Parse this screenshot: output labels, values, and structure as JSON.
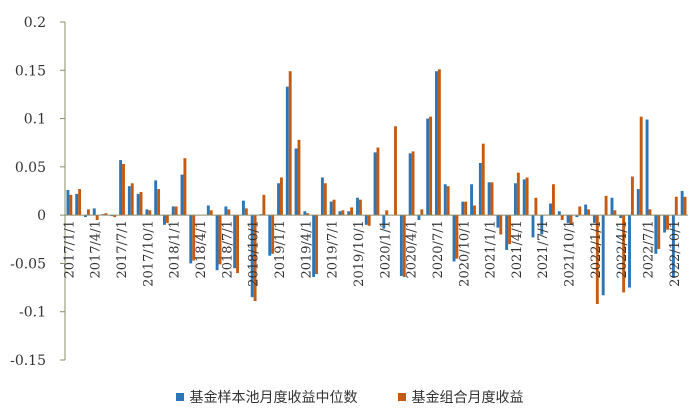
{
  "chart_data": {
    "type": "bar",
    "categories": [
      "2017/1/1",
      "2017/2/1",
      "2017/3/1",
      "2017/4/1",
      "2017/5/1",
      "2017/6/1",
      "2017/7/1",
      "2017/8/1",
      "2017/9/1",
      "2017/10/1",
      "2017/11/1",
      "2017/12/1",
      "2018/1/1",
      "2018/2/1",
      "2018/3/1",
      "2018/4/1",
      "2018/5/1",
      "2018/6/1",
      "2018/7/1",
      "2018/8/1",
      "2018/9/1",
      "2018/10/1",
      "2018/11/1",
      "2018/12/1",
      "2019/1/1",
      "2019/2/1",
      "2019/3/1",
      "2019/4/1",
      "2019/5/1",
      "2019/6/1",
      "2019/7/1",
      "2019/8/1",
      "2019/9/1",
      "2019/10/1",
      "2019/11/1",
      "2019/12/1",
      "2020/1/1",
      "2020/2/1",
      "2020/3/1",
      "2020/4/1",
      "2020/5/1",
      "2020/6/1",
      "2020/7/1",
      "2020/8/1",
      "2020/9/1",
      "2020/10/1",
      "2020/11/1",
      "2020/12/1",
      "2021/1/1",
      "2021/2/1",
      "2021/3/1",
      "2021/4/1",
      "2021/5/1",
      "2021/6/1",
      "2021/7/1",
      "2021/8/1",
      "2021/9/1",
      "2021/10/1",
      "2021/11/1",
      "2021/12/1",
      "2022/1/1",
      "2022/2/1",
      "2022/3/1",
      "2022/4/1",
      "2022/5/1",
      "2022/6/1",
      "2022/7/1",
      "2022/8/1",
      "2022/9/1",
      "2022/10/1",
      "2022/11/1"
    ],
    "tick_labels": [
      "2017/1/1",
      "2017/4/1",
      "2017/7/1",
      "2017/10/1",
      "2018/1/1",
      "2018/4/1",
      "2018/7/1",
      "2018/10/1",
      "2019/1/1",
      "2019/4/1",
      "2019/7/1",
      "2019/10/1",
      "2020/1/1",
      "2020/4/1",
      "2020/7/1",
      "2020/10/1",
      "2021/1/1",
      "2021/4/1",
      "2021/7/1",
      "2021/10/1",
      "2022/1/1",
      "2022/4/1",
      "2022/7/1",
      "2022/10/1"
    ],
    "series": [
      {
        "name": "基金样本池月度收益中位数",
        "color": "#2E75B6",
        "values": [
          0.026,
          0.022,
          -0.002,
          0.007,
          0.001,
          -0.001,
          0.057,
          0.03,
          0.022,
          0.006,
          0.036,
          -0.01,
          0.009,
          0.042,
          -0.05,
          0.0,
          0.01,
          -0.057,
          0.009,
          -0.055,
          0.015,
          -0.085,
          0.001,
          -0.042,
          0.033,
          0.133,
          0.069,
          0.004,
          -0.064,
          0.039,
          0.014,
          0.004,
          0.004,
          0.018,
          -0.01,
          0.065,
          -0.014,
          0.0,
          -0.063,
          0.064,
          -0.005,
          0.1,
          0.149,
          0.032,
          -0.048,
          0.014,
          0.032,
          0.054,
          0.034,
          -0.013,
          -0.036,
          0.033,
          0.037,
          -0.023,
          -0.02,
          0.012,
          0.004,
          -0.008,
          -0.002,
          0.011,
          -0.008,
          -0.083,
          0.018,
          -0.003,
          -0.075,
          0.027,
          0.099,
          -0.04,
          -0.018,
          -0.065,
          0.025
        ]
      },
      {
        "name": "基金组合月度收益",
        "color": "#C55A11",
        "values": [
          0.021,
          0.027,
          0.006,
          -0.005,
          0.002,
          -0.002,
          0.053,
          0.033,
          0.024,
          0.005,
          0.027,
          -0.008,
          0.009,
          0.059,
          -0.047,
          0.0,
          0.005,
          -0.051,
          0.006,
          -0.06,
          0.007,
          -0.089,
          0.021,
          -0.04,
          0.039,
          0.149,
          0.078,
          0.002,
          -0.061,
          0.033,
          0.016,
          0.005,
          0.008,
          0.016,
          -0.011,
          0.07,
          0.005,
          0.092,
          -0.064,
          0.066,
          0.006,
          0.102,
          0.151,
          0.03,
          -0.045,
          0.014,
          0.01,
          0.074,
          0.034,
          -0.02,
          -0.03,
          0.044,
          0.039,
          0.018,
          0.0,
          0.032,
          -0.005,
          -0.01,
          0.009,
          0.006,
          -0.092,
          0.02,
          0.005,
          -0.08,
          0.04,
          0.102,
          0.006,
          -0.035,
          -0.015,
          0.019,
          0.019
        ]
      }
    ],
    "yticks": [
      0.2,
      0.15,
      0.1,
      0.05,
      0,
      -0.05,
      -0.1,
      -0.15
    ],
    "ytick_labels": [
      "0.2",
      "0.15",
      "0.1",
      "0.05",
      "0",
      "-0.05",
      "-0.1",
      "-0.15"
    ],
    "ylim": [
      -0.15,
      0.2
    ],
    "title": "",
    "xlabel": "",
    "ylabel": "",
    "legend_position": "bottom",
    "grid": false
  }
}
